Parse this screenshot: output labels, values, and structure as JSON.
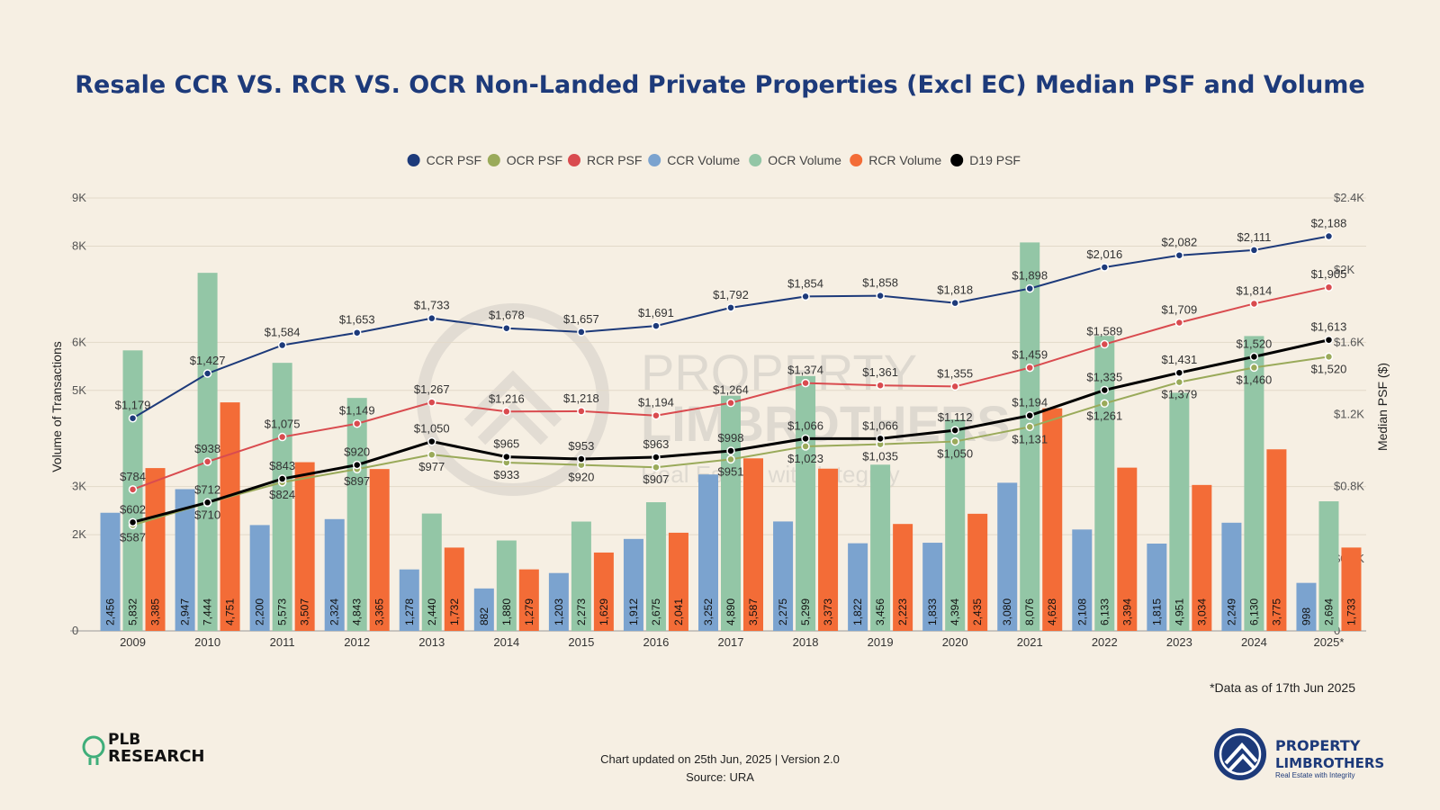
{
  "chart_data": {
    "type": "bar+line",
    "title": "Resale CCR VS. RCR VS. OCR Non-Landed Private Properties (Excl EC) Median PSF and Volume",
    "categories": [
      "2009",
      "2010",
      "2011",
      "2012",
      "2013",
      "2014",
      "2015",
      "2016",
      "2017",
      "2018",
      "2019",
      "2020",
      "2021",
      "2022",
      "2023",
      "2024",
      "2025*"
    ],
    "bar_series": [
      {
        "name": "CCR Volume",
        "color": "#7ba3cf",
        "values": [
          2456,
          2947,
          2200,
          2324,
          1278,
          882,
          1203,
          1912,
          3252,
          2275,
          1822,
          1833,
          3080,
          2108,
          1815,
          2249,
          998
        ],
        "labels": [
          "2,456",
          "2,947",
          "2,200",
          "2,324",
          "1,278",
          "882",
          "1,203",
          "1,912",
          "3,252",
          "2,275",
          "1,822",
          "1,833",
          "3,080",
          "2,108",
          "1,815",
          "2,249",
          "998"
        ]
      },
      {
        "name": "OCR Volume",
        "color": "#93c6a6",
        "values": [
          5832,
          7444,
          5573,
          4843,
          2440,
          1880,
          2273,
          2675,
          4890,
          5299,
          3456,
          4394,
          8076,
          6133,
          4951,
          6130,
          2694
        ],
        "labels": [
          "5,832",
          "7,444",
          "5,573",
          "4,843",
          "2,440",
          "1,880",
          "2,273",
          "2,675",
          "4,890",
          "5,299",
          "3,456",
          "4,394",
          "8,076",
          "6,133",
          "4,951",
          "6,130",
          "2,694"
        ]
      },
      {
        "name": "RCR Volume",
        "color": "#f36c37",
        "values": [
          3385,
          4751,
          3507,
          3365,
          1732,
          1279,
          1629,
          2041,
          3587,
          3373,
          2223,
          2435,
          4628,
          3394,
          3034,
          3775,
          1733
        ],
        "labels": [
          "3,385",
          "4,751",
          "3,507",
          "3,365",
          "1,732",
          "1,279",
          "1,629",
          "2,041",
          "3,587",
          "3,373",
          "2,223",
          "2,435",
          "4,628",
          "3,394",
          "3,034",
          "3,775",
          "1,733"
        ]
      }
    ],
    "line_series": [
      {
        "name": "CCR PSF",
        "color": "#1d3a7a",
        "values": [
          1179,
          1427,
          1584,
          1653,
          1733,
          1678,
          1657,
          1691,
          1792,
          1854,
          1858,
          1818,
          1898,
          2016,
          2082,
          2111,
          2188
        ],
        "labels": [
          "$1,179",
          "$1,427",
          "$1,584",
          "$1,653",
          "$1,733",
          "$1,678",
          "$1,657",
          "$1,691",
          "$1,792",
          "$1,854",
          "$1,858",
          "$1,818",
          "$1,898",
          "$2,016",
          "$2,082",
          "$2,111",
          "$2,188"
        ]
      },
      {
        "name": "OCR PSF",
        "color": "#9aaa5a",
        "values": [
          587,
          710,
          824,
          897,
          977,
          933,
          920,
          907,
          951,
          1023,
          1035,
          1050,
          1131,
          1261,
          1379,
          1460,
          1520
        ],
        "labels": [
          "$587",
          "$710",
          "$824",
          "$897",
          "$977",
          "$933",
          "$920",
          "$907",
          "$951",
          "$1,023",
          "$1,035",
          "$1,050",
          "$1,131",
          "$1,261",
          "$1,379",
          "$1,460",
          "$1,520"
        ]
      },
      {
        "name": "RCR PSF",
        "color": "#d94b4f",
        "values": [
          784,
          938,
          1075,
          1149,
          1267,
          1216,
          1218,
          1194,
          1264,
          1374,
          1361,
          1355,
          1459,
          1589,
          1709,
          1814,
          1905
        ],
        "labels": [
          "$784",
          "$938",
          "$1,075",
          "$1,149",
          "$1,267",
          "$1,216",
          "$1,218",
          "$1,194",
          "$1,264",
          "$1,374",
          "$1,361",
          "$1,355",
          "$1,459",
          "$1,589",
          "$1,709",
          "$1,814",
          "$1,905"
        ]
      },
      {
        "name": "D19 PSF",
        "color": "#000000",
        "values": [
          602,
          712,
          843,
          920,
          1050,
          965,
          953,
          963,
          998,
          1066,
          1066,
          1112,
          1194,
          1335,
          1431,
          1520,
          1613
        ],
        "labels": [
          "$602",
          "$712",
          "$843",
          "$920",
          "$1,050",
          "$965",
          "$953",
          "$963",
          "$998",
          "$1,066",
          "$1,066",
          "$1,112",
          "$1,194",
          "$1,335",
          "$1,431",
          "$1,520",
          "$1,613"
        ]
      }
    ],
    "legend": [
      "CCR PSF",
      "OCR PSF",
      "RCR PSF",
      "CCR Volume",
      "OCR Volume",
      "RCR Volume",
      "D19 PSF"
    ],
    "legend_colors": [
      "#1d3a7a",
      "#9aaa5a",
      "#d94b4f",
      "#7ba3cf",
      "#93c6a6",
      "#f36c37",
      "#000000"
    ],
    "y_left": {
      "label": "Volume of Transactions",
      "range": [
        0,
        9000
      ],
      "ticks": [
        0,
        2000,
        3000,
        5000,
        6000,
        8000,
        9000
      ],
      "tick_labels": [
        "0",
        "2K",
        "3K",
        "5K",
        "6K",
        "8K",
        "9K"
      ]
    },
    "y_right": {
      "label": "Median PSF ($)",
      "range": [
        0,
        2400
      ],
      "ticks": [
        0,
        400,
        800,
        1200,
        1600,
        2000,
        2400
      ],
      "tick_labels": [
        "0",
        "$0.4K",
        "$0.8K",
        "$1.2K",
        "$1.6K",
        "$2K",
        "$2.4K"
      ]
    },
    "grid": true,
    "legend_position": "top-center"
  },
  "footer": {
    "note": "*Data as of 17th Jun 2025",
    "updated": "Chart updated on 25th Jun, 2025 | Version 2.0",
    "source": "Source: URA"
  },
  "branding": {
    "left_logo_line1": "PLB",
    "left_logo_line2": "RESEARCH",
    "right_logo_line1": "PROPERTY",
    "right_logo_line2": "LIMBROTHERS",
    "right_logo_tagline": "Real Estate with Integrity",
    "watermark_line1": "PROPERTY",
    "watermark_line2": "LIMBROTHERS",
    "watermark_tagline": "Real Estate with Integrity"
  }
}
